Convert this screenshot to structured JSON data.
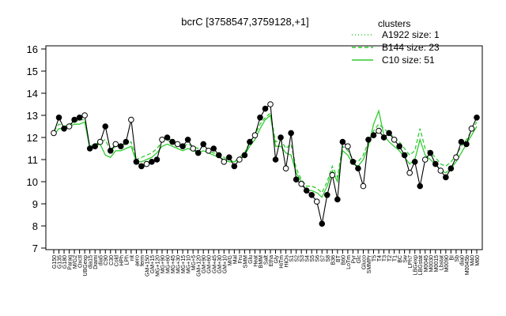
{
  "chart_data": {
    "type": "line",
    "title": "bcrC [3758547,3759128,+1]",
    "xlabel": "",
    "ylabel": "",
    "ylim": [
      7,
      16
    ],
    "yticks": [
      7,
      8,
      9,
      10,
      11,
      12,
      13,
      14,
      15,
      16
    ],
    "grid": false,
    "legend": {
      "title": "clusters",
      "placement": "top-right",
      "color": "#2ecc2e",
      "entries": [
        {
          "label": "A1922 size: 1",
          "style": "dotted"
        },
        {
          "label": "B144 size: 23",
          "style": "dashed"
        },
        {
          "label": "C10 size: 51",
          "style": "solid"
        }
      ]
    },
    "x_tick_labels": [
      "G150",
      "G135",
      "G180",
      "Paraq",
      "M/G2",
      "Oxctl",
      "UBGexp",
      "dia15",
      "Diami",
      "dia5",
      "C90",
      "C30",
      "Cold",
      "HPh",
      "LPh",
      "nit",
      "aero",
      "ferm",
      "GM+150",
      "GM+15",
      "MG+120",
      "MG+90",
      "MG+60",
      "MG+45",
      "MG+30",
      "MG+15",
      "MG+10",
      "MG+5",
      "GM+120",
      "GM+90",
      "GM+60",
      "GM+45",
      "GM+30",
      "GM+10",
      "M/G",
      "Mal",
      "Fru",
      "SMM",
      "Glu",
      "Heat",
      "BMM",
      "Salt",
      "Etha",
      "Gly",
      "HiTm",
      "HiOs",
      "S1",
      "S2",
      "S3",
      "S4",
      "S5",
      "S6",
      "S7",
      "S8",
      "B36",
      "BT",
      "B60",
      "LoTm",
      "Pyr",
      "Glc",
      "Gluco",
      "SMMPr",
      "T5",
      "T4",
      "T3",
      "T2",
      "T1",
      "BC",
      "Sw",
      "LPh7",
      "LBGexp",
      "LBGstat",
      "M0045",
      "M0030",
      "M0015",
      "Lbstat",
      "M0090",
      "BI",
      "Sb",
      "dia0",
      "M0045b",
      "M40",
      "M60"
    ],
    "series": [
      {
        "name": "bcrC",
        "style": "points",
        "values": [
          12.2,
          12.9,
          12.4,
          12.5,
          12.8,
          12.9,
          13.0,
          11.5,
          11.6,
          11.8,
          12.5,
          11.4,
          11.7,
          11.6,
          11.8,
          12.8,
          10.9,
          10.7,
          10.8,
          10.9,
          11.0,
          11.9,
          12.0,
          11.8,
          11.7,
          11.6,
          11.9,
          11.5,
          11.3,
          11.7,
          11.4,
          11.5,
          11.2,
          10.9,
          11.1,
          10.7,
          11.0,
          11.2,
          11.8,
          12.1,
          12.9,
          13.3,
          13.5,
          11.0,
          12.0,
          10.6,
          12.2,
          10.1,
          9.9,
          9.6,
          9.4,
          9.1,
          8.1,
          9.4,
          10.3,
          9.2,
          11.8,
          11.6,
          10.9,
          10.6,
          9.8,
          11.9,
          12.1,
          12.3,
          12.0,
          12.2,
          11.9,
          11.6,
          11.2,
          10.4,
          10.9,
          9.8,
          11.0,
          11.3,
          10.8,
          10.5,
          10.2,
          10.6,
          11.1,
          11.8,
          11.7,
          12.4,
          12.9
        ]
      },
      {
        "name": "B144 size: 23",
        "style": "dashed",
        "values": [
          12.3,
          12.6,
          12.5,
          12.6,
          12.7,
          12.8,
          12.8,
          11.6,
          11.7,
          11.8,
          11.9,
          11.4,
          11.6,
          11.6,
          11.7,
          11.8,
          11.0,
          11.1,
          11.2,
          11.3,
          11.5,
          11.8,
          11.9,
          11.7,
          11.7,
          11.6,
          11.7,
          11.6,
          11.5,
          11.6,
          11.4,
          11.3,
          11.2,
          11.1,
          11.0,
          10.9,
          11.1,
          11.3,
          11.8,
          12.1,
          12.6,
          12.9,
          13.1,
          11.8,
          11.9,
          11.5,
          11.7,
          10.6,
          10.1,
          9.8,
          9.8,
          9.7,
          9.5,
          10.0,
          10.7,
          10.2,
          11.6,
          11.4,
          11.0,
          10.9,
          11.2,
          11.8,
          12.3,
          12.6,
          12.4,
          12.2,
          12.0,
          11.8,
          11.5,
          11.2,
          11.4,
          12.4,
          11.5,
          11.3,
          11.1,
          10.8,
          10.7,
          10.9,
          11.2,
          11.6,
          11.9,
          12.3,
          12.7
        ]
      },
      {
        "name": "C10 size: 51",
        "style": "solid",
        "values": [
          12.1,
          12.4,
          12.4,
          12.5,
          12.6,
          12.6,
          12.7,
          11.5,
          11.6,
          11.7,
          11.2,
          11.1,
          11.4,
          11.4,
          11.5,
          11.6,
          10.9,
          10.9,
          11.0,
          11.1,
          11.3,
          11.6,
          11.7,
          11.6,
          11.5,
          11.4,
          11.5,
          11.4,
          11.3,
          11.4,
          11.3,
          11.2,
          11.1,
          11.0,
          10.9,
          10.9,
          11.0,
          11.2,
          11.6,
          11.9,
          12.4,
          12.8,
          13.0,
          11.6,
          11.6,
          11.3,
          11.2,
          10.4,
          10.0,
          9.6,
          9.6,
          9.5,
          9.3,
          9.8,
          10.5,
          10.0,
          11.4,
          11.2,
          10.8,
          10.7,
          11.0,
          11.6,
          12.6,
          13.2,
          12.1,
          11.8,
          11.6,
          11.4,
          11.1,
          10.8,
          11.0,
          11.9,
          11.2,
          11.0,
          10.8,
          10.5,
          10.4,
          10.6,
          10.9,
          11.3,
          11.7,
          12.1,
          12.5
        ]
      }
    ]
  }
}
